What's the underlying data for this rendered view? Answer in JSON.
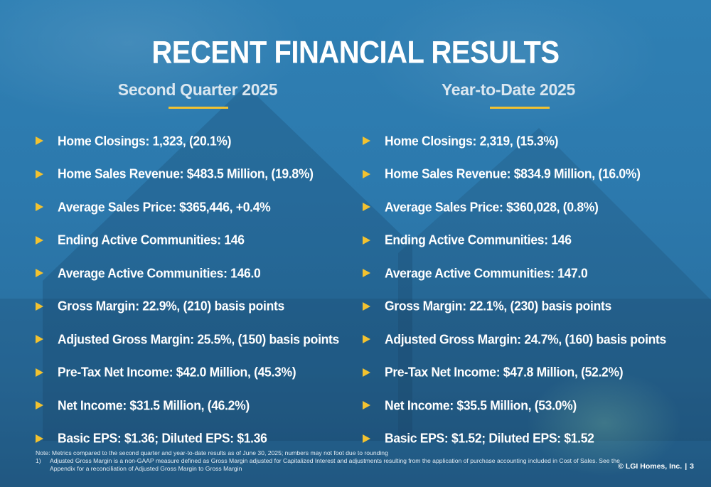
{
  "title": "RECENT FINANCIAL RESULTS",
  "left_column": {
    "heading": "Second Quarter 2025",
    "items": [
      "Home Closings: 1,323, (20.1%)",
      "Home Sales Revenue: $483.5 Million, (19.8%)",
      "Average Sales Price: $365,446, +0.4%",
      "Ending Active Communities: 146",
      "Average Active Communities: 146.0",
      "Gross Margin: 22.9%, (210) basis points",
      "Adjusted Gross Margin: 25.5%, (150) basis points",
      "Pre-Tax Net Income: $42.0 Million, (45.3%)",
      "Net Income: $31.5 Million, (46.2%)",
      "Basic EPS: $1.36; Diluted EPS: $1.36"
    ]
  },
  "right_column": {
    "heading": "Year-to-Date 2025",
    "items": [
      "Home Closings: 2,319, (15.3%)",
      "Home Sales Revenue: $834.9 Million, (16.0%)",
      "Average Sales Price: $360,028, (0.8%)",
      "Ending Active Communities: 146",
      "Average Active Communities: 147.0",
      "Gross Margin: 22.1%, (230) basis points",
      "Adjusted Gross Margin: 24.7%, (160) basis points",
      "Pre-Tax Net Income: $47.8 Million, (52.2%)",
      "Net Income: $35.5 Million, (53.0%)",
      "Basic EPS: $1.52; Diluted EPS: $1.52"
    ]
  },
  "footnotes": {
    "note": "Note: Metrics compared to the second quarter and year-to-date results as of June 30, 2025; numbers may not foot due to rounding",
    "items": [
      {
        "number": "1)",
        "text": "Adjusted Gross Margin is a non-GAAP measure defined as Gross Margin adjusted for Capitalized Interest and adjustments resulting from the application of purchase accounting included in Cost of Sales. See the Appendix for a reconciliation of Adjusted Gross Margin to Gross Margin"
      }
    ]
  },
  "footer": {
    "copyright": "© LGI Homes, Inc.",
    "separator": "|",
    "page_number": "3"
  },
  "colors": {
    "background": "#2c79ad",
    "accent": "#f2c230",
    "text": "#ffffff"
  },
  "icons": {
    "bullet": "triangle-right-icon"
  }
}
